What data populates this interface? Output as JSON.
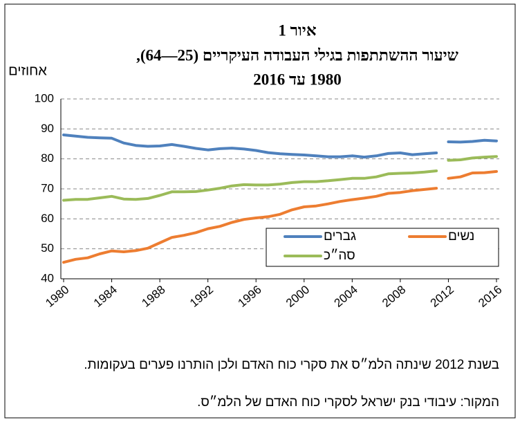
{
  "chart_data": {
    "type": "line",
    "title": "איור 1",
    "subtitle": [
      "שיעור ההשתתפות בגילי העבודה העיקריים (25—64),",
      "1980 עד 2016"
    ],
    "y_label": "אחוזים",
    "x": [
      1980,
      1981,
      1982,
      1983,
      1984,
      1985,
      1986,
      1987,
      1988,
      1989,
      1990,
      1991,
      1992,
      1993,
      1994,
      1995,
      1996,
      1997,
      1998,
      1999,
      2000,
      2001,
      2002,
      2003,
      2004,
      2005,
      2006,
      2007,
      2008,
      2009,
      2010,
      2011,
      null,
      2012,
      2013,
      2014,
      2015,
      2016
    ],
    "series": [
      {
        "name": "גברים",
        "color": "#4f81bd",
        "values": [
          88,
          87.6,
          87.2,
          87,
          86.9,
          85.3,
          84.5,
          84.2,
          84.3,
          84.8,
          84.2,
          83.5,
          83,
          83.4,
          83.6,
          83.3,
          82.8,
          82.1,
          81.7,
          81.5,
          81.3,
          81,
          80.7,
          80.7,
          81,
          80.6,
          81,
          81.8,
          82,
          81.4,
          81.7,
          82,
          null,
          85.7,
          85.6,
          85.8,
          86.2,
          86
        ]
      },
      {
        "name": "נשים",
        "color": "#ed7d31",
        "values": [
          45.5,
          46.5,
          47,
          48.3,
          49.3,
          49,
          49.4,
          50.2,
          52,
          53.8,
          54.5,
          55.4,
          56.7,
          57.5,
          58.8,
          59.8,
          60.3,
          60.7,
          61.5,
          63,
          64,
          64.3,
          65,
          65.8,
          66.4,
          66.9,
          67.5,
          68.5,
          68.8,
          69.4,
          69.8,
          70.2,
          null,
          73.5,
          74,
          75.3,
          75.4,
          75.8
        ]
      },
      {
        "name": "סה״כ",
        "color": "#9bbb59",
        "values": [
          66.2,
          66.5,
          66.5,
          67,
          67.5,
          66.6,
          66.5,
          66.8,
          67.8,
          69,
          69,
          69.1,
          69.6,
          70.2,
          71,
          71.4,
          71.3,
          71.3,
          71.6,
          72.1,
          72.4,
          72.4,
          72.7,
          73.1,
          73.5,
          73.5,
          74,
          75,
          75.2,
          75.3,
          75.6,
          76,
          null,
          79.5,
          79.7,
          80.3,
          80.6,
          80.8
        ]
      }
    ],
    "xlim": [
      1980,
      2016
    ],
    "xticks": [
      1980,
      1984,
      1988,
      1992,
      1996,
      2000,
      2004,
      2008,
      2012,
      2016
    ],
    "ylim": [
      40,
      100
    ],
    "yticks": [
      40,
      50,
      60,
      70,
      80,
      90,
      100
    ],
    "grid": true,
    "note": "בשנת 2012 שינתה הלמ״ס את סקרי כוח האדם ולכן הותרנו פערים בעקומות.",
    "source": "המקור: עיבודי בנק ישראל לסקרי כוח האדם של הלמ״ס."
  }
}
